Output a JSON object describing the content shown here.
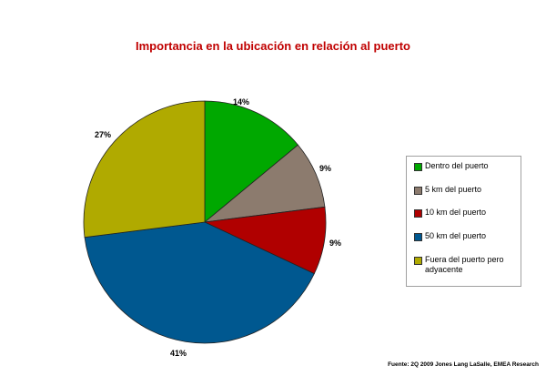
{
  "chart_data": {
    "type": "pie",
    "title": "Importancia en la ubicación en relación al puerto",
    "categories": [
      "Dentro del puerto",
      "5 km del puerto",
      "10 km del puerto",
      "50 km del puerto",
      "Fuera del puerto pero adyacente"
    ],
    "values": [
      14,
      9,
      9,
      41,
      27
    ],
    "labels": [
      "14%",
      "9%",
      "9%",
      "41%",
      "27%"
    ],
    "colors": [
      "#00a800",
      "#8c7b6e",
      "#b00000",
      "#005890",
      "#b0aa00"
    ],
    "legend_position": "right",
    "source": "Fuente:  2Q 2009 Jones Lang LaSalle, EMEA Research"
  },
  "legend": {
    "items": [
      {
        "label": "Dentro del puerto",
        "color": "#00a800"
      },
      {
        "label": "5 km del puerto",
        "color": "#8c7b6e"
      },
      {
        "label": "10 km del puerto",
        "color": "#b00000"
      },
      {
        "label": "50 km del puerto",
        "color": "#005890"
      },
      {
        "label": "Fuera del puerto pero adyacente",
        "color": "#b0aa00"
      }
    ]
  }
}
